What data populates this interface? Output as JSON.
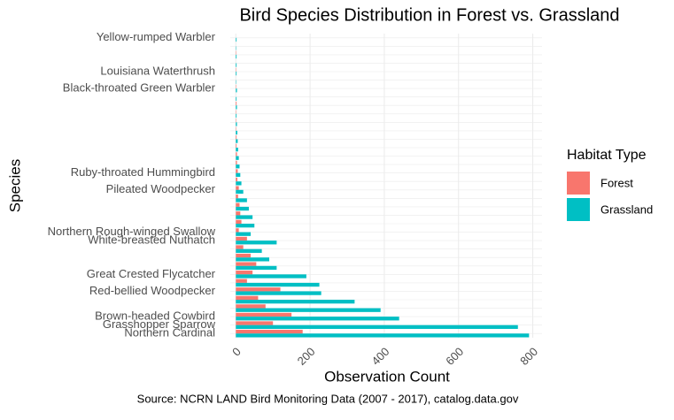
{
  "chart_data": {
    "type": "bar",
    "orientation": "horizontal",
    "title": "Bird Species Distribution in Forest vs. Grassland",
    "x_label": "Observation Count",
    "y_label": "Species",
    "caption": "Source: NCRN LAND Bird Monitoring Data (2007 - 2017), catalog.data.gov",
    "legend_title": "Habitat Type",
    "categories": [
      "Yellow-rumped Warbler",
      null,
      null,
      null,
      "Louisiana Waterthrush",
      null,
      "Black-throated Green Warbler",
      null,
      null,
      null,
      null,
      null,
      null,
      null,
      null,
      null,
      "Ruby-throated Hummingbird",
      null,
      "Pileated Woodpecker",
      null,
      null,
      null,
      null,
      "Northern Rough-winged Swallow",
      "White-breasted Nuthatch",
      null,
      null,
      null,
      "Great Crested Flycatcher",
      null,
      "Red-bellied Woodpecker",
      null,
      null,
      "Brown-headed Cowbird",
      "Grasshopper Sparrow",
      "Northern Cardinal"
    ],
    "series": [
      {
        "name": "Forest",
        "color": "#F8766D",
        "values": [
          0,
          0,
          1,
          0,
          1,
          0,
          1,
          0,
          2,
          1,
          1,
          1,
          2,
          2,
          3,
          3,
          5,
          4,
          8,
          6,
          10,
          12,
          15,
          8,
          30,
          20,
          40,
          55,
          45,
          30,
          120,
          60,
          80,
          150,
          100,
          180
        ]
      },
      {
        "name": "Grassland",
        "color": "#00BFC4",
        "values": [
          2,
          1,
          2,
          2,
          2,
          1,
          3,
          2,
          3,
          2,
          3,
          4,
          5,
          6,
          8,
          10,
          12,
          15,
          20,
          30,
          35,
          45,
          50,
          40,
          110,
          70,
          90,
          110,
          190,
          225,
          230,
          320,
          390,
          440,
          760,
          790
        ]
      }
    ],
    "xlim": [
      -15,
      825
    ],
    "xticks": [
      0,
      200,
      400,
      600,
      800
    ],
    "grid": true,
    "legend": "right"
  }
}
